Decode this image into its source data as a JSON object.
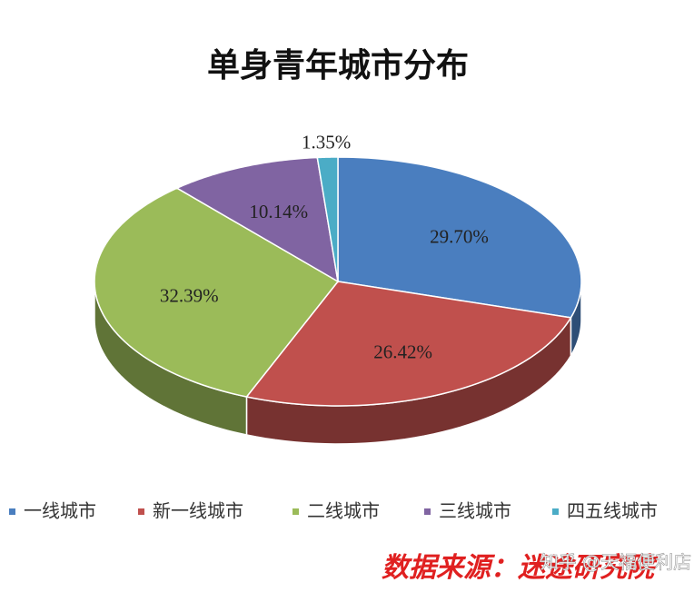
{
  "chart_data": {
    "type": "pie3d",
    "title": "单身青年城市分布",
    "categories": [
      "一线城市",
      "新一线城市",
      "二线城市",
      "三线城市",
      "四五线城市"
    ],
    "values": [
      29.7,
      26.42,
      32.39,
      10.14,
      1.35
    ],
    "value_labels": [
      "29.70%",
      "26.42%",
      "32.39%",
      "10.14%",
      "1.35%"
    ],
    "colors": [
      "#4a7ebf",
      "#c0504d",
      "#9bbb59",
      "#8064a2",
      "#4bacc6"
    ],
    "legend": "bottom",
    "source": "数据来源：迷途研究院",
    "watermark": "知乎 @天福便利店"
  }
}
